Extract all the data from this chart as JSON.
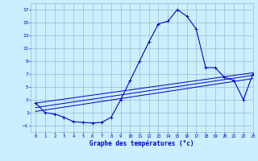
{
  "xlabel": "Graphe des températures (°c)",
  "bg_color": "#cceeff",
  "grid_color": "#99bbcc",
  "line_color": "#0000cc",
  "hours": [
    0,
    1,
    2,
    3,
    4,
    5,
    6,
    7,
    8,
    9,
    10,
    11,
    12,
    13,
    14,
    15,
    16,
    17,
    18,
    19,
    20,
    21,
    22,
    23
  ],
  "temp_main": [
    2.5,
    1.0,
    0.8,
    0.3,
    -0.4,
    -0.5,
    -0.6,
    -0.5,
    0.3,
    3.0,
    6.0,
    9.0,
    12.0,
    14.8,
    15.2,
    17.0,
    16.0,
    14.0,
    8.0,
    8.0,
    6.5,
    6.0,
    3.0,
    7.0
  ],
  "ref_lines": [
    [
      [
        0,
        2.5
      ],
      [
        23,
        7.2
      ]
    ],
    [
      [
        0,
        1.8
      ],
      [
        23,
        6.8
      ]
    ],
    [
      [
        0,
        1.2
      ],
      [
        23,
        6.3
      ]
    ]
  ],
  "ylim": [
    -2,
    18
  ],
  "yticks": [
    -1,
    1,
    3,
    5,
    7,
    9,
    11,
    13,
    15,
    17
  ],
  "xlim": [
    -0.5,
    23
  ],
  "xticks": [
    0,
    1,
    2,
    3,
    4,
    5,
    6,
    7,
    8,
    9,
    10,
    11,
    12,
    13,
    14,
    15,
    16,
    17,
    18,
    19,
    20,
    21,
    22,
    23
  ]
}
